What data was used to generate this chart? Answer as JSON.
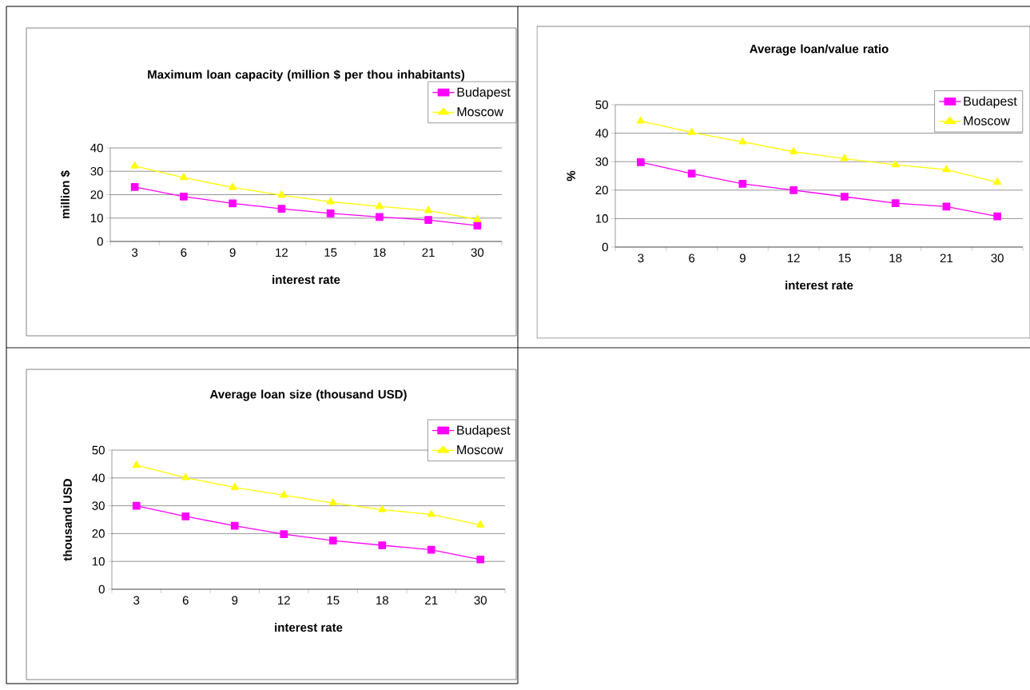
{
  "chart_data": [
    {
      "type": "line",
      "title": "Maximum loan capacity (million $ per thou inhabitants)",
      "xlabel": "interest rate",
      "ylabel": "million $",
      "categories": [
        "3",
        "6",
        "9",
        "12",
        "15",
        "18",
        "21",
        "30"
      ],
      "ylim": [
        0,
        40
      ],
      "yticks": [
        0,
        10,
        20,
        30,
        40
      ],
      "grid": "y",
      "legend": "top right",
      "series": [
        {
          "name": "Budapest",
          "color": "#ff00ff",
          "marker": "square",
          "values": [
            23.3,
            19.2,
            16.3,
            14,
            12,
            10.5,
            9.2,
            6.8
          ]
        },
        {
          "name": "Moscow",
          "color": "#ffff00",
          "marker": "triangle",
          "values": [
            32.3,
            27.3,
            23.1,
            19.8,
            17,
            15,
            13.2,
            9.4
          ]
        }
      ]
    },
    {
      "type": "line",
      "title": "Average loan/value ratio",
      "xlabel": "interest rate",
      "ylabel": "%",
      "categories": [
        "3",
        "6",
        "9",
        "12",
        "15",
        "18",
        "21",
        "30"
      ],
      "ylim": [
        0,
        50
      ],
      "yticks": [
        0,
        10,
        20,
        30,
        40,
        50
      ],
      "grid": "y",
      "legend": "top right",
      "series": [
        {
          "name": "Budapest",
          "color": "#ff00ff",
          "marker": "square",
          "values": [
            29.8,
            25.8,
            22.2,
            20,
            17.7,
            15.4,
            14.2,
            10.8
          ]
        },
        {
          "name": "Moscow",
          "color": "#ffff00",
          "marker": "triangle",
          "values": [
            44.3,
            40.3,
            37,
            33.5,
            31.1,
            28.9,
            27.2,
            22.8
          ]
        }
      ]
    },
    {
      "type": "line",
      "title": "Average loan size (thousand USD)",
      "xlabel": "interest rate",
      "ylabel": "thousand USD",
      "categories": [
        "3",
        "6",
        "9",
        "12",
        "15",
        "18",
        "21",
        "30"
      ],
      "ylim": [
        0,
        50
      ],
      "yticks": [
        0,
        10,
        20,
        30,
        40,
        50
      ],
      "grid": "y",
      "legend": "top right",
      "series": [
        {
          "name": "Budapest",
          "color": "#ff00ff",
          "marker": "square",
          "values": [
            30,
            26.2,
            22.8,
            19.8,
            17.5,
            15.8,
            14.2,
            10.7
          ]
        },
        {
          "name": "Moscow",
          "color": "#ffff00",
          "marker": "triangle",
          "values": [
            44.6,
            40.1,
            36.6,
            33.8,
            31,
            28.6,
            26.9,
            23.1
          ]
        }
      ]
    }
  ]
}
